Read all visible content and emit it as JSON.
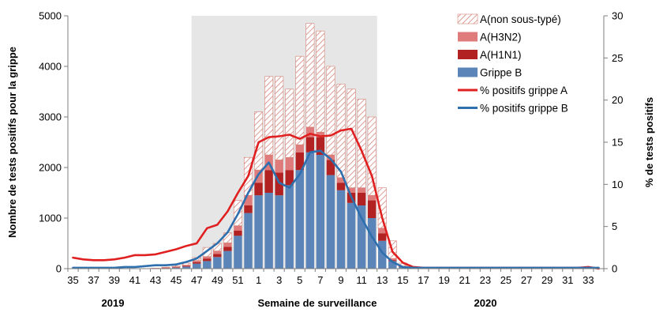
{
  "chart_data": {
    "type": "bar",
    "x_label": "Semaine de surveillance",
    "y_left_label": "Nombre de tests positifs pour la grippe",
    "y_right_label": "% de tests positifs",
    "y_left_range": [
      0,
      5000
    ],
    "y_left_ticks": [
      "0",
      "1000",
      "2000",
      "3000",
      "4000",
      "5000"
    ],
    "y_right_range": [
      0,
      30
    ],
    "y_right_ticks": [
      "0",
      "5",
      "10",
      "15",
      "20",
      "25",
      "30"
    ],
    "x_tick_labels": [
      "35",
      "37",
      "39",
      "41",
      "43",
      "45",
      "47",
      "49",
      "51",
      "1",
      "3",
      "5",
      "7",
      "9",
      "11",
      "13",
      "15",
      "17",
      "19",
      "21",
      "23",
      "25",
      "27",
      "29",
      "31",
      "33"
    ],
    "year_labels": [
      "2019",
      "2020"
    ],
    "shaded_region": {
      "from_week": "47",
      "to_week": "12",
      "color": "#e6e6e6"
    },
    "weeks": [
      "35",
      "36",
      "37",
      "38",
      "39",
      "40",
      "41",
      "42",
      "43",
      "44",
      "45",
      "46",
      "47",
      "48",
      "49",
      "50",
      "51",
      "52",
      "1",
      "2",
      "3",
      "4",
      "5",
      "6",
      "7",
      "8",
      "9",
      "10",
      "11",
      "12",
      "13",
      "14",
      "15",
      "16",
      "17",
      "18",
      "19",
      "20",
      "21",
      "22",
      "23",
      "24",
      "25",
      "26",
      "27",
      "28",
      "29",
      "30",
      "31",
      "32",
      "33",
      "34"
    ],
    "series": [
      {
        "name": "Grippe B",
        "kind": "bar",
        "color": "#5b84b8",
        "values": [
          0,
          0,
          0,
          0,
          0,
          0,
          0,
          0,
          5,
          10,
          20,
          40,
          100,
          150,
          230,
          350,
          650,
          1100,
          1450,
          1500,
          1450,
          1650,
          1950,
          2300,
          2250,
          1850,
          1550,
          1300,
          1250,
          1000,
          550,
          150,
          30,
          10,
          0,
          0,
          0,
          0,
          0,
          0,
          0,
          0,
          0,
          0,
          0,
          0,
          0,
          0,
          0,
          0,
          0,
          0
        ]
      },
      {
        "name": "A(H1N1)",
        "kind": "bar",
        "color": "#b22222",
        "values": [
          0,
          0,
          0,
          0,
          0,
          0,
          0,
          0,
          0,
          5,
          10,
          15,
          30,
          50,
          60,
          80,
          100,
          150,
          250,
          450,
          450,
          300,
          350,
          300,
          350,
          300,
          150,
          200,
          250,
          350,
          150,
          20,
          10,
          0,
          0,
          0,
          0,
          0,
          0,
          0,
          0,
          0,
          0,
          0,
          0,
          0,
          0,
          0,
          0,
          0,
          0,
          0
        ]
      },
      {
        "name": "A(H3N2)",
        "kind": "bar",
        "color": "#e07b7b",
        "values": [
          0,
          0,
          0,
          0,
          0,
          0,
          0,
          0,
          0,
          5,
          10,
          15,
          30,
          40,
          60,
          80,
          100,
          200,
          250,
          300,
          250,
          250,
          150,
          200,
          100,
          100,
          100,
          100,
          100,
          100,
          100,
          30,
          10,
          0,
          0,
          0,
          0,
          0,
          0,
          0,
          0,
          0,
          0,
          0,
          0,
          0,
          0,
          0,
          0,
          0,
          0,
          0
        ]
      },
      {
        "name": "A(non sous-typé)",
        "kind": "bar",
        "color": "#d4847a",
        "pattern": "hatched",
        "values": [
          0,
          0,
          0,
          0,
          0,
          0,
          0,
          0,
          5,
          10,
          20,
          40,
          60,
          180,
          150,
          200,
          500,
          750,
          1150,
          1550,
          1650,
          1350,
          1750,
          2050,
          2000,
          1750,
          1850,
          1950,
          1750,
          1550,
          800,
          350,
          60,
          10,
          0,
          0,
          0,
          0,
          0,
          0,
          0,
          0,
          0,
          0,
          0,
          0,
          0,
          0,
          0,
          0,
          0,
          0
        ]
      },
      {
        "name": "% positifs grippe A",
        "kind": "line",
        "axis": "right",
        "color": "#e02020",
        "values": [
          1.3,
          1.1,
          1.0,
          1.0,
          1.1,
          1.3,
          1.6,
          1.6,
          1.7,
          2.0,
          2.3,
          2.7,
          3.0,
          4.8,
          5.2,
          6.8,
          9.0,
          11.0,
          15.0,
          15.6,
          15.7,
          15.9,
          15.4,
          16.0,
          15.7,
          15.8,
          16.4,
          16.6,
          14.0,
          11.0,
          6.0,
          2.0,
          0.7,
          0.2,
          0.1,
          0.1,
          0.1,
          0.1,
          0.1,
          0.1,
          0.1,
          0.1,
          0.1,
          0.1,
          0.1,
          0.1,
          0.1,
          0.1,
          0.1,
          0.1,
          0.2,
          0.0
        ]
      },
      {
        "name": "% positifs grippe B",
        "kind": "line",
        "axis": "right",
        "color": "#2e6fae",
        "values": [
          0.1,
          0.1,
          0.1,
          0.1,
          0.1,
          0.2,
          0.2,
          0.3,
          0.4,
          0.4,
          0.5,
          0.8,
          1.2,
          2.1,
          3.0,
          4.3,
          6.5,
          9.0,
          11.2,
          12.6,
          10.2,
          9.6,
          11.2,
          13.8,
          14.0,
          13.0,
          11.5,
          8.5,
          6.0,
          3.8,
          1.9,
          0.8,
          0.2,
          0.1,
          0.1,
          0.1,
          0.1,
          0.1,
          0.1,
          0.1,
          0.1,
          0.1,
          0.1,
          0.1,
          0.1,
          0.1,
          0.1,
          0.1,
          0.1,
          0.1,
          0.1,
          0.1
        ]
      }
    ],
    "legend_position": "top-right",
    "legend": [
      "A(non sous-typé)",
      "A(H3N2)",
      "A(H1N1)",
      "Grippe B",
      "% positifs grippe A",
      "% positifs grippe B"
    ]
  }
}
